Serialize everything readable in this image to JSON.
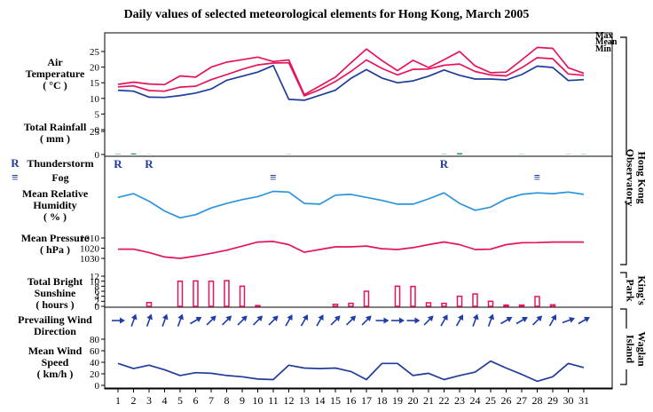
{
  "title": "Daily values of selected meteorological elements for Hong Kong, March 2005",
  "days": [
    "1",
    "2",
    "3",
    "4",
    "5",
    "6",
    "7",
    "8",
    "9",
    "10",
    "11",
    "12",
    "13",
    "14",
    "15",
    "16",
    "17",
    "18",
    "19",
    "20",
    "21",
    "22",
    "23",
    "24",
    "25",
    "26",
    "27",
    "28",
    "29",
    "30",
    "31"
  ],
  "station_labels": {
    "hko": "Hong Kong Observatory",
    "kp": "King's Park",
    "waglan": "Waglan Island"
  },
  "legend_symbols": {
    "thunderstorm": "R",
    "fog": "≡"
  },
  "colors": {
    "max": "#e4145a",
    "mean": "#e4145a",
    "min": "#1e3c9b",
    "rainfall": "#2a9d5a",
    "humidity": "#2c94dc",
    "pressure": "#e4145a",
    "sunshine": "#e4145a",
    "wind": "#1e3caa",
    "wind_speed": "#1e3c9b",
    "axis": "#000000"
  },
  "chart_data": [
    {
      "type": "line",
      "title": "Air Temperature (°C)",
      "ylabel": "Air Temperature (°C)",
      "ylim": [
        0,
        25
      ],
      "yticks": [
        0,
        5,
        10,
        15,
        20,
        25
      ],
      "series": [
        {
          "name": "Max",
          "values": [
            14.5,
            15.2,
            14.6,
            14.4,
            17.2,
            16.8,
            20,
            21.6,
            22.4,
            23.2,
            21.8,
            22.3,
            11.2,
            14,
            16.8,
            21.4,
            25.8,
            22.1,
            18.9,
            22.2,
            19.9,
            22.4,
            25,
            20.4,
            18.2,
            18.4,
            22.3,
            26.3,
            26,
            19.8,
            18
          ]
        },
        {
          "name": "Mean",
          "values": [
            13.7,
            14,
            12.5,
            12.3,
            13.6,
            13.9,
            16,
            17.6,
            19.3,
            20.7,
            21.3,
            21.4,
            10.8,
            12.8,
            15.4,
            18.6,
            22.3,
            19.6,
            17.5,
            19.3,
            19.4,
            20.6,
            21,
            18.6,
            17.5,
            17.2,
            19.8,
            23,
            22.7,
            17.8,
            17.4
          ]
        },
        {
          "name": "Min",
          "values": [
            12.6,
            12.3,
            10.4,
            10.3,
            10.9,
            11.7,
            13,
            15.8,
            17.1,
            18.4,
            20.5,
            9.7,
            9.4,
            11,
            12.6,
            16.4,
            19.2,
            16.5,
            15,
            15.6,
            17.1,
            19.1,
            17.4,
            16.2,
            16.2,
            15.9,
            17.6,
            20.3,
            19.9,
            15.7,
            16
          ]
        }
      ]
    },
    {
      "type": "bar",
      "title": "Total Rainfall (mm)",
      "ylabel": "Total Rainfall (mm)",
      "ylim": [
        0,
        25
      ],
      "yticks": [
        0,
        25
      ],
      "categories": [
        "1",
        "2",
        "3",
        "4",
        "5",
        "6",
        "7",
        "8",
        "9",
        "10",
        "11",
        "12",
        "13",
        "14",
        "15",
        "16",
        "17",
        "18",
        "19",
        "20",
        "21",
        "22",
        "23",
        "24",
        "25",
        "26",
        "27",
        "28",
        "29",
        "30",
        "31"
      ],
      "values": [
        0.5,
        1.2,
        0.2,
        0,
        0,
        0,
        0,
        0,
        0,
        0,
        0,
        0.3,
        0,
        0,
        0,
        0,
        0,
        0,
        0,
        0,
        0,
        0.4,
        1.5,
        0,
        0,
        0,
        0.3,
        0,
        0,
        0.3,
        0.3
      ]
    },
    {
      "type": "table",
      "title": "Thunderstorm / Fog",
      "thunderstorm_days": [
        1,
        3,
        22
      ],
      "fog_days": [
        11,
        28
      ]
    },
    {
      "type": "line",
      "title": "Mean Relative Humidity (%)",
      "ylabel": "Mean Relative Humidity (%)",
      "ylim": [
        40,
        100
      ],
      "series": [
        {
          "name": "",
          "values": [
            82,
            87,
            77,
            64,
            55,
            59,
            68,
            74,
            79,
            83,
            90,
            89,
            74,
            73,
            85,
            86,
            82,
            78,
            73,
            73,
            80,
            88,
            74,
            65,
            69,
            80,
            86,
            88,
            87,
            89,
            86
          ]
        }
      ]
    },
    {
      "type": "line",
      "title": "Mean Pressure (hPa)",
      "ylabel": "Mean Pressure (hPa)",
      "ylim": [
        1010,
        1030
      ],
      "yticks": [
        1010,
        1020,
        1030
      ],
      "series": [
        {
          "name": "",
          "values": [
            1021,
            1021,
            1024.3,
            1028.6,
            1030,
            1027.7,
            1025,
            1022,
            1018,
            1014,
            1013.4,
            1016.5,
            1024,
            1021.3,
            1018.7,
            1018.7,
            1017.9,
            1020.5,
            1021.3,
            1019.5,
            1016.5,
            1013.9,
            1016.5,
            1021.3,
            1021,
            1016.5,
            1014.7,
            1014.5,
            1014,
            1014,
            1014
          ]
        }
      ]
    },
    {
      "type": "bar",
      "title": "Total Bright Sunshine (hours)",
      "ylabel": "Total Bright Sunshine (hours)",
      "ylim": [
        0,
        12
      ],
      "yticks": [
        0,
        2,
        4,
        6,
        8,
        10,
        12
      ],
      "categories": [
        "1",
        "2",
        "3",
        "4",
        "5",
        "6",
        "7",
        "8",
        "9",
        "10",
        "11",
        "12",
        "13",
        "14",
        "15",
        "16",
        "17",
        "18",
        "19",
        "20",
        "21",
        "22",
        "23",
        "24",
        "25",
        "26",
        "27",
        "28",
        "29",
        "30",
        "31"
      ],
      "values": [
        0,
        0,
        1.5,
        0,
        10,
        10.1,
        10,
        10.2,
        8,
        0.3,
        0,
        0,
        0,
        0,
        0.8,
        1.2,
        6,
        0,
        8,
        7.9,
        1.4,
        1.2,
        4,
        4.9,
        2,
        0.5,
        0.5,
        3.9,
        0.6,
        0,
        0
      ]
    },
    {
      "type": "table",
      "title": "Prevailing Wind Direction",
      "wind_from_deg": [
        90,
        20,
        20,
        20,
        20,
        60,
        45,
        45,
        45,
        45,
        45,
        30,
        30,
        30,
        45,
        45,
        45,
        90,
        90,
        90,
        45,
        30,
        30,
        20,
        20,
        60,
        60,
        45,
        30,
        70,
        60
      ]
    },
    {
      "type": "line",
      "title": "Mean Wind Speed (km/h)",
      "ylabel": "Mean Wind Speed (km/h)",
      "ylim": [
        0,
        80
      ],
      "yticks": [
        0,
        20,
        40,
        60,
        80
      ],
      "series": [
        {
          "name": "",
          "values": [
            38,
            29,
            35,
            27,
            17,
            22,
            21,
            17,
            15,
            11,
            10,
            35,
            30,
            29,
            30,
            24,
            10,
            38,
            38,
            17,
            21,
            10,
            17,
            23,
            42,
            30,
            19,
            7,
            15,
            38,
            31
          ]
        }
      ]
    }
  ]
}
